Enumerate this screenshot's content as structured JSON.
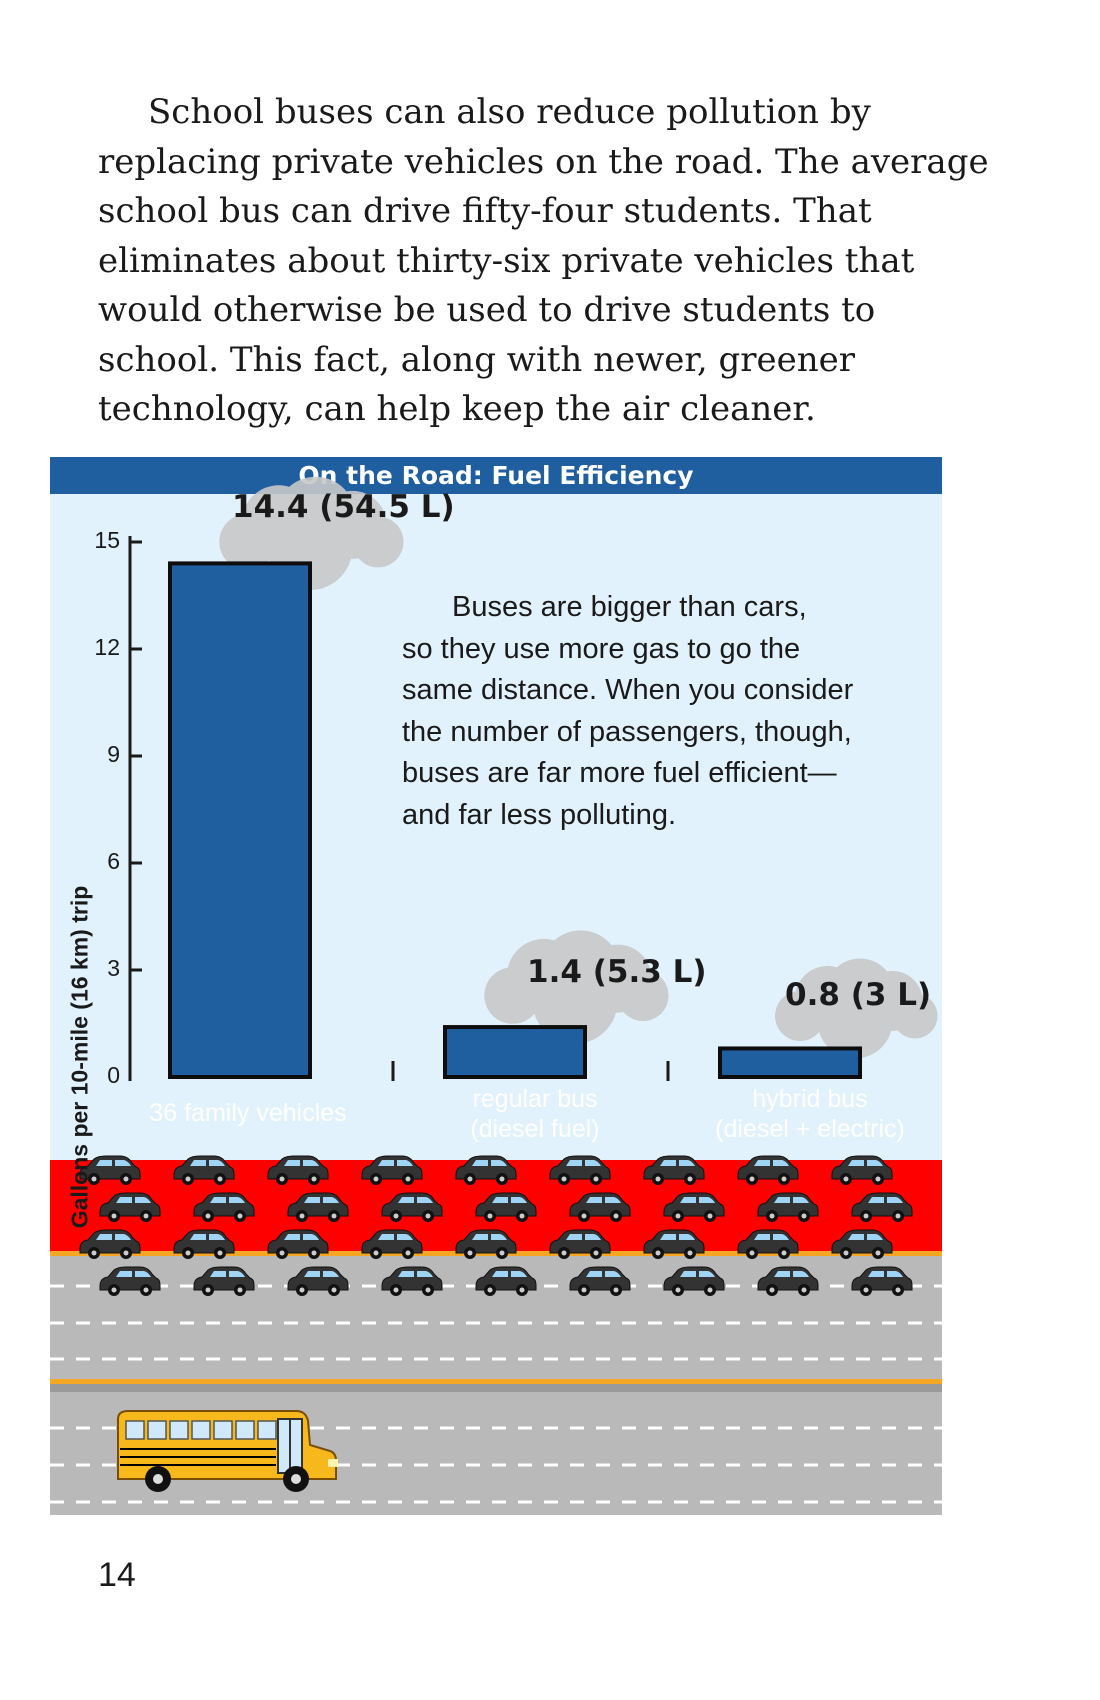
{
  "body": {
    "lines": [
      "School buses can also reduce pollution by",
      "replacing private vehicles on the road. The average",
      "school bus can drive fifty-four students. That",
      "eliminates about thirty-six private vehicles that",
      "would otherwise be used to drive students to",
      "school. This fact, along with newer, greener",
      "technology, can help keep the air cleaner."
    ]
  },
  "figure": {
    "annotation_lines": [
      "Buses are bigger than cars,",
      "so they use more gas to go the",
      "same distance. When you consider",
      "the number of passengers, though,",
      "buses are far more fuel efficient—",
      "and far less polluting."
    ]
  },
  "chart_data": {
    "type": "bar",
    "title": "On the Road: Fuel Efficiency",
    "ylabel": "Gallons per 10-mile (16 km) trip",
    "xlabel": "",
    "ylim": [
      0,
      15
    ],
    "yticks": [
      "0",
      "3",
      "6",
      "9",
      "12",
      "15"
    ],
    "categories": [
      [
        "36 family vehicles"
      ],
      [
        "regular bus",
        "(diesel fuel)"
      ],
      [
        "hybrid bus",
        "(diesel + electric)"
      ]
    ],
    "values": [
      14.4,
      1.4,
      0.8
    ],
    "data_labels": [
      "14.4 (54.5 L)",
      "1.4 (5.3 L)",
      "0.8 (3 L)"
    ],
    "grid": false,
    "bar_color": "#1f5fa0"
  },
  "colors": {
    "header": "#1f5fa0",
    "sky": "#e2f2fd",
    "red_band": "#ff0000",
    "road": "#b9b9b9",
    "road_stripe": "#f5a623",
    "car_body": "#333333",
    "bus_body": "#f7b81b"
  },
  "icons": {
    "car": "car-icon",
    "bus": "school-bus-icon"
  },
  "page_number": "14"
}
